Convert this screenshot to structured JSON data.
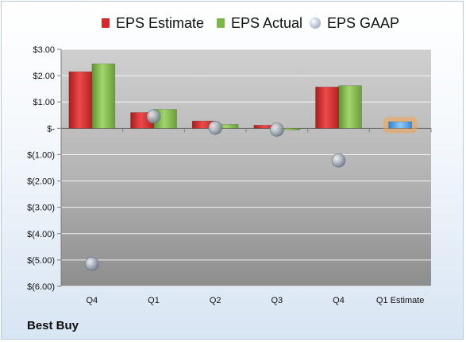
{
  "company": "Best Buy",
  "colors": {
    "eps_estimate": "#d42a2a",
    "eps_actual": "#7ab648",
    "eps_gaap": "#9aa5b3",
    "estimate_bar": "#4aa0e6",
    "estimate_glow": "#f3a24a"
  },
  "chart_data": {
    "type": "bar",
    "categories": [
      "Q4",
      "Q1",
      "Q2",
      "Q3",
      "Q4",
      "Q1 Estimate"
    ],
    "series": [
      {
        "name": "EPS Estimate",
        "kind": "bar",
        "values": [
          2.15,
          0.6,
          0.28,
          0.12,
          1.57,
          0.25
        ]
      },
      {
        "name": "EPS Actual",
        "kind": "bar",
        "values": [
          2.45,
          0.72,
          0.15,
          -0.02,
          1.62,
          null
        ]
      },
      {
        "name": "EPS GAAP",
        "kind": "scatter",
        "values": [
          -5.15,
          0.45,
          0.02,
          -0.05,
          -1.22,
          null
        ]
      }
    ],
    "ylim": [
      -6,
      3
    ],
    "yticks": [
      3,
      2,
      1,
      0,
      -1,
      -2,
      -3,
      -4,
      -5,
      -6
    ],
    "ytick_labels": [
      "$3.00",
      "$2.00",
      "$1.00",
      "$-",
      "$(1.00)",
      "$(2.00)",
      "$(3.00)",
      "$(4.00)",
      "$(5.00)",
      "$(6.00)"
    ],
    "grid": true,
    "legend": "top",
    "highlight_last_category": true
  }
}
